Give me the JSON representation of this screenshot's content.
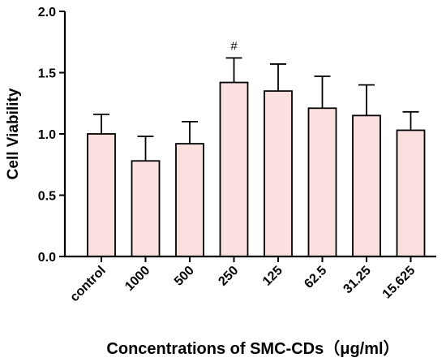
{
  "chart_data": {
    "type": "bar",
    "xlabel": "Concentrations of SMC-CDs（μg/ml）",
    "ylabel": "Cell Viability",
    "ylim": [
      0,
      2.0
    ],
    "yticks": [
      "0.0",
      "0.5",
      "1.0",
      "1.5",
      "2.0"
    ],
    "categories": [
      "control",
      "1000",
      "500",
      "250",
      "125",
      "62.5",
      "31.25",
      "15.625"
    ],
    "values": [
      1.0,
      0.78,
      0.92,
      1.42,
      1.35,
      1.21,
      1.15,
      1.03
    ],
    "error_upper": [
      0.16,
      0.2,
      0.18,
      0.2,
      0.22,
      0.26,
      0.25,
      0.15
    ],
    "annotations": [
      {
        "category": "250",
        "text": "#"
      }
    ],
    "bar_fill": "#fbe0e0",
    "bar_stroke": "#000000",
    "grid": false
  }
}
